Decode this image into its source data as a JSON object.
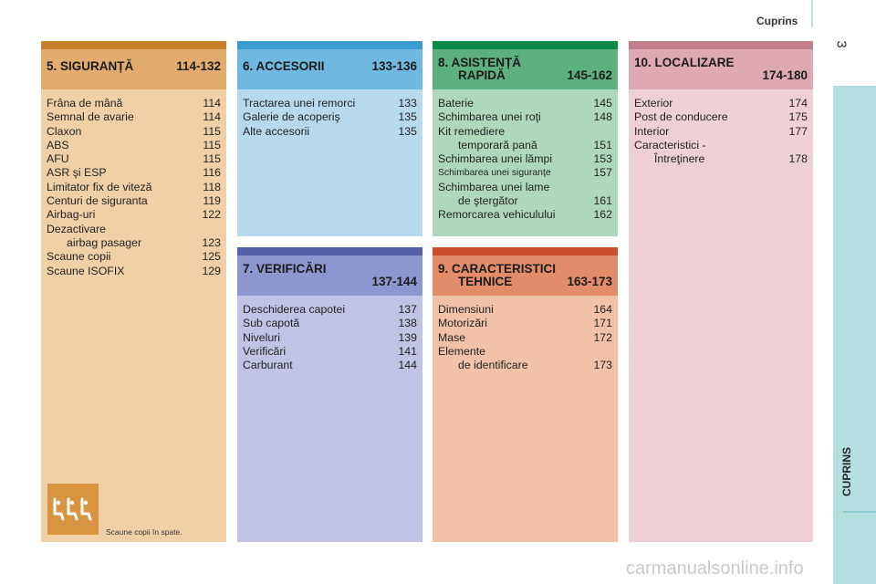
{
  "header": {
    "title": "Cuprins",
    "page_number": "3",
    "side_tab": "CUPRINS"
  },
  "sections": {
    "s5": {
      "title": "5. SIGURANȚĂ",
      "range": "114-132",
      "strip_color": "#c9802a",
      "title_bg": "#e2ac6e",
      "body_bg": "#f1d0a8",
      "items": [
        {
          "label": "Frâna de mână",
          "page": "114"
        },
        {
          "label": "Semnal de avarie",
          "page": "114"
        },
        {
          "label": "Claxon",
          "page": "115"
        },
        {
          "label": "ABS",
          "page": "115"
        },
        {
          "label": "AFU",
          "page": "115"
        },
        {
          "label": "ASR şi ESP",
          "page": "116"
        },
        {
          "label": "Limitator fix de viteză",
          "page": "118"
        },
        {
          "label": "Centuri de siguranta",
          "page": "119"
        },
        {
          "label": "Airbag-uri",
          "page": "122"
        },
        {
          "label": "Dezactivare",
          "page": ""
        },
        {
          "label": "airbag pasager",
          "page": "123"
        },
        {
          "label": "Scaune copii",
          "page": "125"
        },
        {
          "label": "Scaune ISOFIX",
          "page": "129"
        }
      ],
      "caption": "Scaune copii în spate."
    },
    "s6": {
      "title": "6. ACCESORII",
      "range": "133-136",
      "strip_color": "#3b9ad0",
      "title_bg": "#6fb8df",
      "body_bg": "#b6d9ee",
      "items": [
        {
          "label": "Tractarea unei remorci",
          "page": "133"
        },
        {
          "label": "Galerie de acoperiş",
          "page": "135"
        },
        {
          "label": "Alte accesorii",
          "page": "135"
        }
      ]
    },
    "s7": {
      "title": "7. VERIFICĂRI",
      "range": "137-144",
      "strip_color": "#5361a9",
      "title_bg": "#8e96cf",
      "body_bg": "#c0c3e5",
      "items": [
        {
          "label": "Deschiderea capotei",
          "page": "137"
        },
        {
          "label": "Sub capotă",
          "page": "138"
        },
        {
          "label": "Niveluri",
          "page": "139"
        },
        {
          "label": "Verificări",
          "page": "141"
        },
        {
          "label": "Carburant",
          "page": "144"
        }
      ]
    },
    "s8": {
      "title": "8. ASISTENȚĂ",
      "title2": "RAPIDĂ",
      "range": "145-162",
      "strip_color": "#0a8a4a",
      "title_bg": "#5db07f",
      "body_bg": "#aed8bc",
      "items": [
        {
          "label": "Baterie",
          "page": "145"
        },
        {
          "label": "Schimbarea unei roţi",
          "page": "148"
        },
        {
          "label": "Kit remediere",
          "page": ""
        },
        {
          "label": "temporară pană",
          "page": "151"
        },
        {
          "label": "Schimbarea unei lămpi",
          "page": "153"
        },
        {
          "label": "Schimbarea unei siguranţe",
          "page": "157"
        },
        {
          "label": "Schimbarea unei lame",
          "page": ""
        },
        {
          "label": "de ştergător",
          "page": "161"
        },
        {
          "label": "Remorcarea vehiculului",
          "page": "162"
        }
      ]
    },
    "s9": {
      "title": "9. CARACTERISTICI",
      "title2": "TEHNICE",
      "range": "163-173",
      "strip_color": "#c9502a",
      "title_bg": "#e38c6a",
      "body_bg": "#f1c1a8",
      "items": [
        {
          "label": "Dimensiuni",
          "page": "164"
        },
        {
          "label": "Motorizări",
          "page": "171"
        },
        {
          "label": "Mase",
          "page": "172"
        },
        {
          "label": "Elemente",
          "page": ""
        },
        {
          "label": "de identificare",
          "page": "173"
        }
      ]
    },
    "s10": {
      "title": "10. LOCALIZARE",
      "range": "174-180",
      "strip_color": "#c07f8a",
      "title_bg": "#dfa9b3",
      "body_bg": "#efd0d6",
      "items": [
        {
          "label": "Exterior",
          "page": "174"
        },
        {
          "label": "Post de conducere",
          "page": "175"
        },
        {
          "label": "Interior",
          "page": "177"
        },
        {
          "label": "Caracteristici -",
          "page": ""
        },
        {
          "label": "Întreţinere",
          "page": "178"
        }
      ]
    }
  },
  "watermark": "carmanualsonline.info"
}
